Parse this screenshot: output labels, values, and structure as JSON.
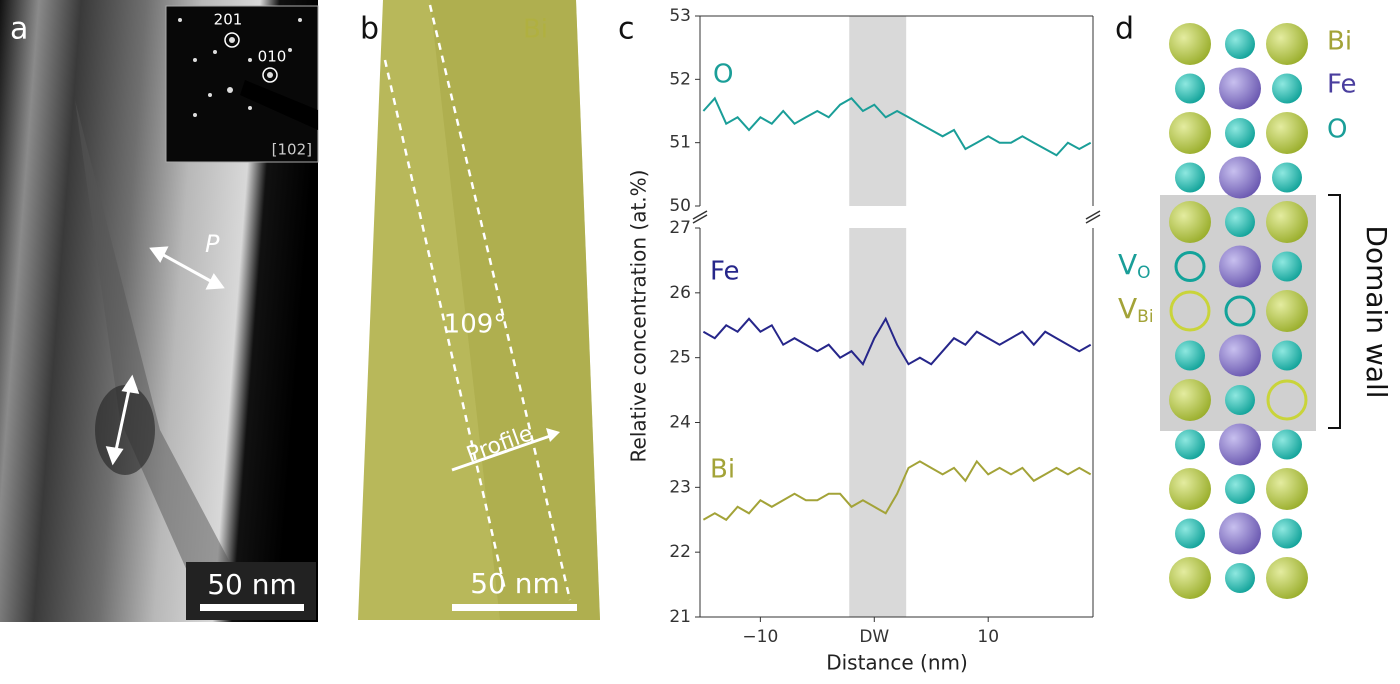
{
  "panel_labels": [
    "a",
    "b",
    "c",
    "d"
  ],
  "panel_a": {
    "inset_spots": [
      "201",
      "010"
    ],
    "inset_zone": "[102]",
    "arrow_label": "P",
    "scale_bar": "50 nm"
  },
  "panel_b": {
    "element": "Bi",
    "angle": "109°",
    "profile": "Profile",
    "scale_bar": "50 nm"
  },
  "panel_d": {
    "legend": [
      "Bi",
      "Fe",
      "O"
    ],
    "v_o": {
      "main": "V",
      "sub": "O"
    },
    "v_bi": {
      "main": "V",
      "sub": "Bi"
    },
    "wall": "Domain wall"
  },
  "chart_data": {
    "type": "line",
    "xlabel": "Distance (nm)",
    "ylabel": "Relative concentration (at.%)",
    "x": [
      -15,
      -14,
      -13,
      -12,
      -11,
      -10,
      -9,
      -8,
      -7,
      -6,
      -5,
      -4,
      -3,
      -2,
      -1,
      0,
      1,
      2,
      3,
      4,
      5,
      6,
      7,
      8,
      9,
      10,
      11,
      12,
      13,
      14,
      15,
      16,
      17,
      18,
      19
    ],
    "xlim": [
      -15.3,
      19.2
    ],
    "xticks": [
      {
        "value": -10,
        "label": "−10"
      },
      {
        "value": 0,
        "label": "DW"
      },
      10
    ],
    "highlight": [
      -2.2,
      2.8
    ],
    "panels": [
      {
        "ylim": [
          50,
          53
        ],
        "yticks": [
          50,
          51,
          52,
          53
        ],
        "series": [
          {
            "name": "O",
            "color": "#1a9e98",
            "values": [
              51.5,
              51.7,
              51.3,
              51.4,
              51.2,
              51.4,
              51.3,
              51.5,
              51.3,
              51.4,
              51.5,
              51.4,
              51.6,
              51.7,
              51.5,
              51.6,
              51.4,
              51.5,
              51.4,
              51.3,
              51.2,
              51.1,
              51.2,
              50.9,
              51.0,
              51.1,
              51.0,
              51.0,
              51.1,
              51.0,
              50.9,
              50.8,
              51.0,
              50.9,
              51.0
            ]
          }
        ]
      },
      {
        "ylim": [
          21,
          27
        ],
        "yticks": [
          21,
          22,
          23,
          24,
          25,
          26,
          27
        ],
        "series": [
          {
            "name": "Fe",
            "color": "#26268a",
            "values": [
              25.4,
              25.3,
              25.5,
              25.4,
              25.6,
              25.4,
              25.5,
              25.2,
              25.3,
              25.2,
              25.1,
              25.2,
              25.0,
              25.1,
              24.9,
              25.3,
              25.6,
              25.2,
              24.9,
              25.0,
              24.9,
              25.1,
              25.3,
              25.2,
              25.4,
              25.3,
              25.2,
              25.3,
              25.4,
              25.2,
              25.4,
              25.3,
              25.2,
              25.1,
              25.2
            ]
          },
          {
            "name": "Bi",
            "color": "#a3a338",
            "values": [
              22.5,
              22.6,
              22.5,
              22.7,
              22.6,
              22.8,
              22.7,
              22.8,
              22.9,
              22.8,
              22.8,
              22.9,
              22.9,
              22.7,
              22.8,
              22.7,
              22.6,
              22.9,
              23.3,
              23.4,
              23.3,
              23.2,
              23.3,
              23.1,
              23.4,
              23.2,
              23.3,
              23.2,
              23.3,
              23.1,
              23.2,
              23.3,
              23.2,
              23.3,
              23.2
            ]
          }
        ]
      }
    ]
  }
}
